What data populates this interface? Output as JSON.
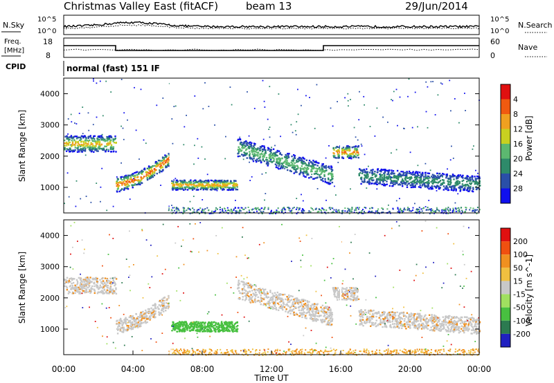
{
  "header": {
    "title": "Christmas Valley East (fitACF)",
    "beam": "beam 13",
    "date": "29/Jun/2014"
  },
  "sky_panel": {
    "left_label": "N.Sky",
    "right_label": "N.Search",
    "tick_top": "10^5",
    "tick_bottom": "10^0",
    "tick_top_right": "10^5",
    "tick_bottom_right": "10^0"
  },
  "freq_panel": {
    "left_label_1": "Freq.",
    "left_label_2": "[MHz]",
    "right_label": "Nave",
    "left_ticks": [
      "18",
      "8"
    ],
    "right_ticks": [
      "60",
      "0"
    ],
    "freq_steps": [
      {
        "t0": 0,
        "t1": 3,
        "value": 14.5
      },
      {
        "t0": 3,
        "t1": 15,
        "value": 11
      },
      {
        "t0": 15,
        "t1": 16,
        "value": 14.5
      },
      {
        "t0": 16,
        "t1": 24,
        "value": 14.5
      }
    ]
  },
  "cpid": {
    "label": "CPID",
    "text": "normal (fast) 151 IF"
  },
  "chart_data": [
    {
      "type": "heatmap",
      "quantity": "Power",
      "ylabel": "Slant Range [km]",
      "yticks": [
        "1000",
        "2000",
        "3000",
        "4000"
      ],
      "ylim": [
        180,
        4500
      ],
      "xlim": [
        0,
        24
      ],
      "colorbar_label": "Power [dB]",
      "colorbar_ticks": [
        "4",
        "8",
        "12",
        "16",
        "20",
        "24",
        "28"
      ],
      "colors": [
        "#1010ee",
        "#2a4fa8",
        "#2e8a6a",
        "#5cb870",
        "#c8d020",
        "#f0a020",
        "#f05a10",
        "#e01010"
      ]
    },
    {
      "type": "heatmap",
      "quantity": "Velocity",
      "ylabel": "Slant Range [km]",
      "yticks": [
        "1000",
        "2000",
        "3000",
        "4000"
      ],
      "ylim": [
        180,
        4500
      ],
      "xlim": [
        0,
        24
      ],
      "xlabel": "Time UT",
      "xticks": [
        "00:00",
        "04:00",
        "08:00",
        "12:00",
        "16:00",
        "20:00",
        "00:00"
      ],
      "colorbar_label": "Velocity [m s^-1]",
      "colorbar_ticks": [
        "200",
        "100",
        "50",
        "15",
        "-15",
        "-50",
        "-100",
        "-200"
      ],
      "colors": [
        "#2020c0",
        "#2c7a50",
        "#48c040",
        "#a0e060",
        "#c8c8c8",
        "#f0c040",
        "#f09020",
        "#f05010",
        "#e01010"
      ]
    }
  ]
}
